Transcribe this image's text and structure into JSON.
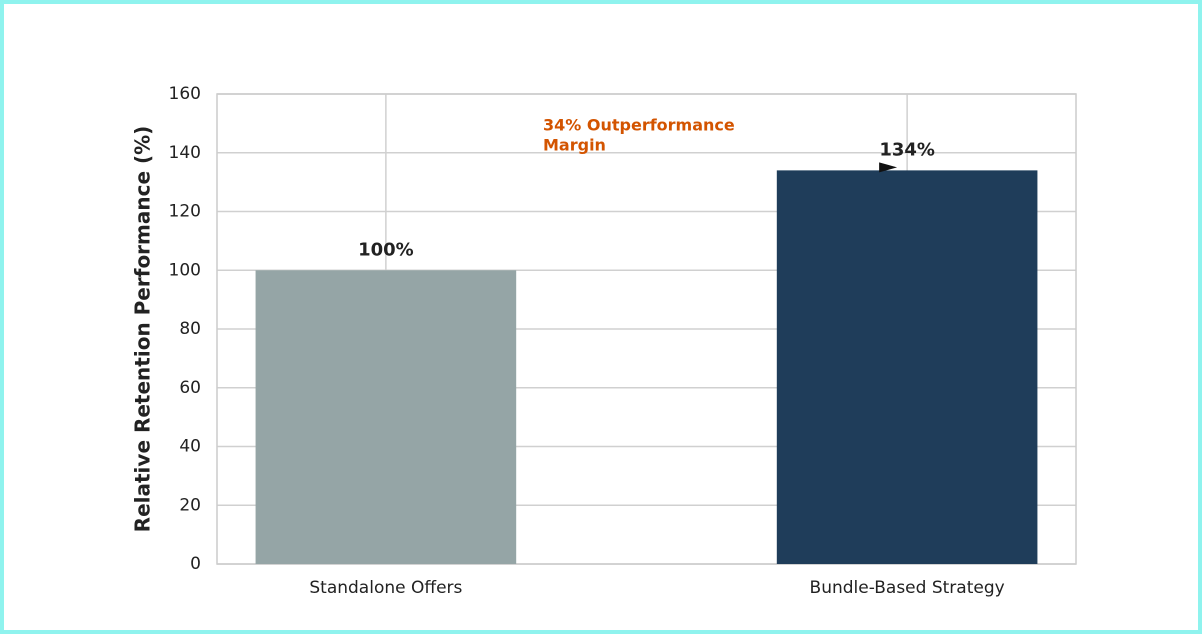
{
  "chart_data": {
    "type": "bar",
    "categories": [
      "Standalone Offers",
      "Bundle-Based Strategy"
    ],
    "values": [
      100,
      134
    ],
    "value_labels": [
      "100%",
      "134%"
    ],
    "colors": [
      "#95a5a6",
      "#1f3d5a"
    ],
    "y_label": "Relative Retention Performance (%)",
    "annotation": [
      "34% Outperformance",
      "Margin"
    ],
    "annotation_color": "#d35400",
    "ylim": [
      0,
      160
    ],
    "yticks": [
      0,
      20,
      40,
      60,
      80,
      100,
      120,
      140,
      160
    ],
    "grid": true
  }
}
